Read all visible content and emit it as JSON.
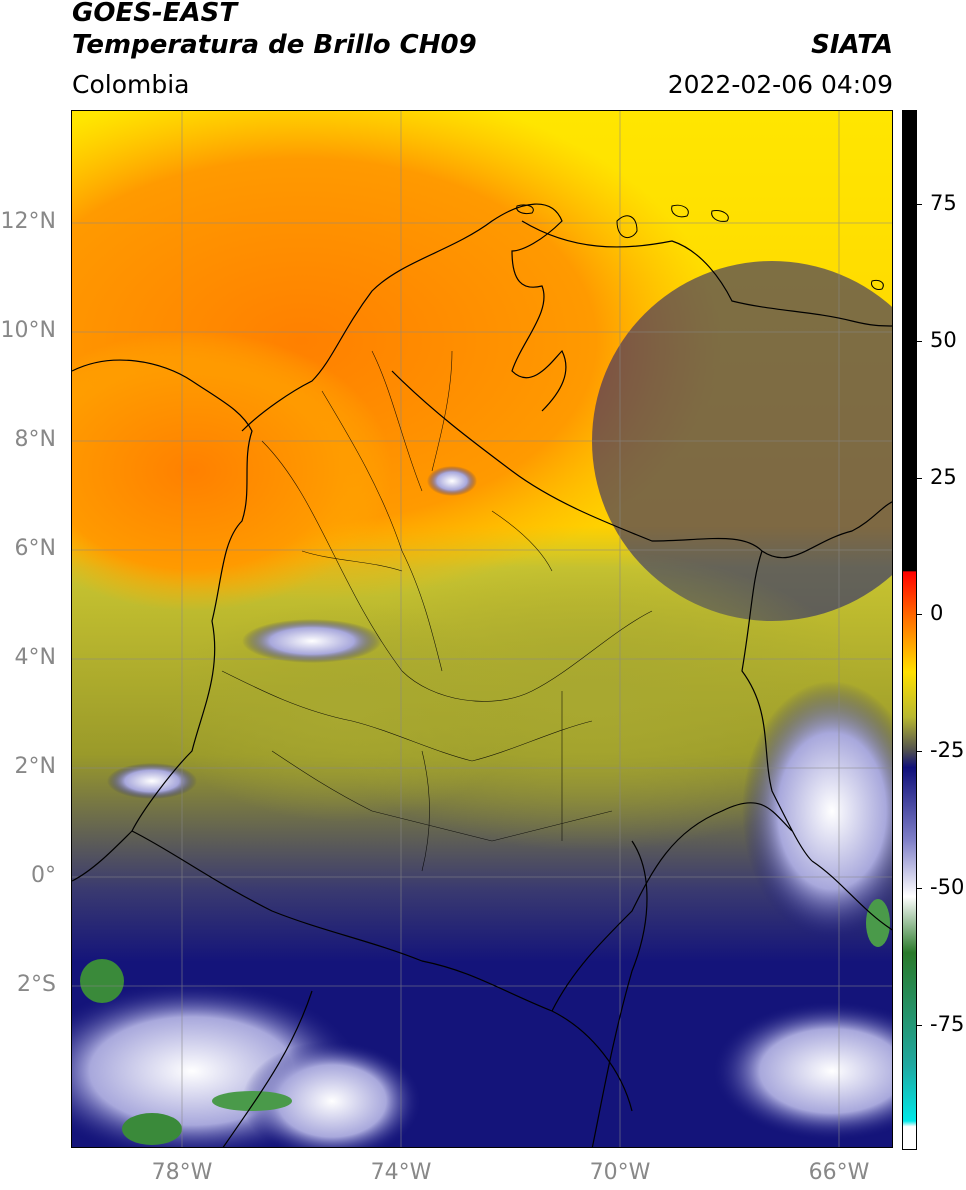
{
  "header": {
    "title_line1": "GOES-EAST",
    "title_line2": "Temperatura de Brillo CH09",
    "organization": "SIATA",
    "region": "Colombia",
    "timestamp": "2022-02-06 04:09"
  },
  "map": {
    "extent": {
      "lon_min": -80,
      "lon_max": -65,
      "lat_min": -5,
      "lat_max": 14
    },
    "latitude_ticks": [
      {
        "value": 12,
        "label": "12°N"
      },
      {
        "value": 10,
        "label": "10°N"
      },
      {
        "value": 8,
        "label": "8°N"
      },
      {
        "value": 6,
        "label": "6°N"
      },
      {
        "value": 4,
        "label": "4°N"
      },
      {
        "value": 2,
        "label": "2°N"
      },
      {
        "value": 0,
        "label": "0°"
      },
      {
        "value": -2,
        "label": "2°S"
      }
    ],
    "longitude_ticks": [
      {
        "value": -78,
        "label": "78°W"
      },
      {
        "value": -74,
        "label": "74°W"
      },
      {
        "value": -70,
        "label": "70°W"
      },
      {
        "value": -66,
        "label": "66°W"
      }
    ],
    "gridlines": true,
    "colors": {
      "warm": "#ff8c00",
      "mid": "#ffff00",
      "olive": "#9a9a2a",
      "cold": "#14147a",
      "coldest": "#ffffff",
      "green": "#3a8a3a"
    }
  },
  "colorbar": {
    "min": -95,
    "max": 90,
    "ticks": [
      {
        "value": 75,
        "label": "75"
      },
      {
        "value": 50,
        "label": "50"
      },
      {
        "value": 25,
        "label": "25"
      },
      {
        "value": 0,
        "label": "0"
      },
      {
        "value": -25,
        "label": "-25"
      },
      {
        "value": -50,
        "label": "-50"
      },
      {
        "value": -75,
        "label": "-75"
      }
    ],
    "color_stops": [
      {
        "value": 90,
        "color": "#000000"
      },
      {
        "value": 8,
        "color": "#000000"
      },
      {
        "value": 7.9,
        "color": "#ff0000"
      },
      {
        "value": 0,
        "color": "#ff6a00"
      },
      {
        "value": -10,
        "color": "#ffe000"
      },
      {
        "value": -18,
        "color": "#b8b830"
      },
      {
        "value": -24,
        "color": "#505050"
      },
      {
        "value": -27,
        "color": "#10107a"
      },
      {
        "value": -40,
        "color": "#8080c8"
      },
      {
        "value": -50,
        "color": "#ffffff"
      },
      {
        "value": -60,
        "color": "#2a7a2a"
      },
      {
        "value": -80,
        "color": "#20a8a0"
      },
      {
        "value": -90,
        "color": "#00e8e8"
      },
      {
        "value": -91,
        "color": "#ffffff"
      },
      {
        "value": -95,
        "color": "#ffffff"
      }
    ]
  }
}
